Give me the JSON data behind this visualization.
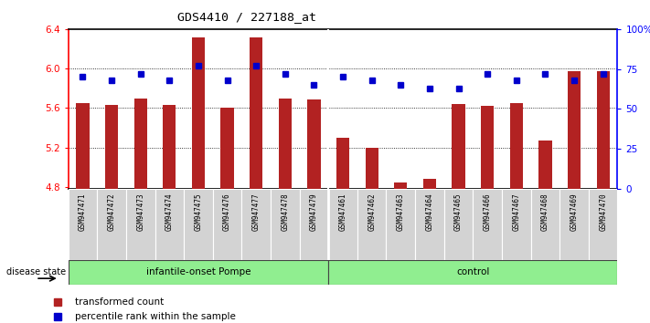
{
  "title": "GDS4410 / 227188_at",
  "samples": [
    "GSM947471",
    "GSM947472",
    "GSM947473",
    "GSM947474",
    "GSM947475",
    "GSM947476",
    "GSM947477",
    "GSM947478",
    "GSM947479",
    "GSM947461",
    "GSM947462",
    "GSM947463",
    "GSM947464",
    "GSM947465",
    "GSM947466",
    "GSM947467",
    "GSM947468",
    "GSM947469",
    "GSM947470"
  ],
  "red_values": [
    5.65,
    5.63,
    5.7,
    5.63,
    6.32,
    5.6,
    6.32,
    5.7,
    5.69,
    5.3,
    5.2,
    4.85,
    4.88,
    5.64,
    5.62,
    5.65,
    5.27,
    5.97,
    5.97
  ],
  "blue_values": [
    70,
    68,
    72,
    68,
    77,
    68,
    77,
    72,
    65,
    70,
    68,
    65,
    63,
    63,
    72,
    68,
    72,
    68,
    72
  ],
  "group1_label": "infantile-onset Pompe",
  "group2_label": "control",
  "group1_count": 9,
  "group2_count": 10,
  "ylim_left": [
    4.78,
    6.4
  ],
  "ylim_right": [
    0,
    100
  ],
  "yticks_left": [
    4.8,
    5.2,
    5.6,
    6.0,
    6.4
  ],
  "yticks_right": [
    0,
    25,
    50,
    75,
    100
  ],
  "bar_color": "#b22222",
  "dot_color": "#0000cc",
  "group_bg": "#90ee90",
  "label_bg": "#d3d3d3",
  "legend_items": [
    "transformed count",
    "percentile rank within the sample"
  ],
  "disease_state_label": "disease state"
}
